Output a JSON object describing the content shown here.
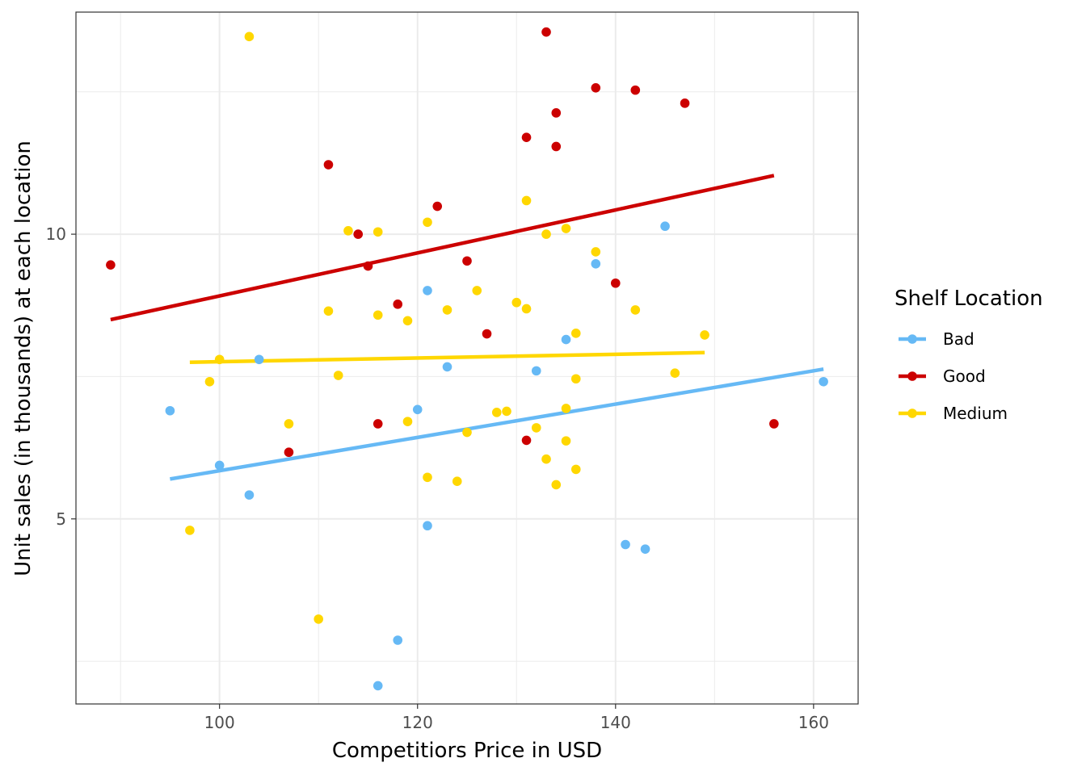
{
  "chart_data": {
    "type": "scatter",
    "xlabel": "Competitiors Price in USD",
    "ylabel": "Unit sales (in thousands) at each location",
    "xlim": [
      85.5,
      164.5
    ],
    "ylim": [
      1.75,
      13.9
    ],
    "x_ticks": [
      100,
      120,
      140,
      160
    ],
    "y_ticks": [
      5,
      10
    ],
    "grid": true,
    "legend": {
      "title": "Shelf Location",
      "position": "right"
    },
    "series": [
      {
        "name": "Bad",
        "color": "#66b9f5",
        "points": [
          [
            95,
            6.9
          ],
          [
            100,
            5.94
          ],
          [
            103,
            5.42
          ],
          [
            104,
            7.8
          ],
          [
            116,
            2.07
          ],
          [
            118,
            2.87
          ],
          [
            120,
            6.92
          ],
          [
            121,
            9.01
          ],
          [
            121,
            4.88
          ],
          [
            123,
            7.67
          ],
          [
            132,
            7.6
          ],
          [
            135,
            8.15
          ],
          [
            138,
            9.48
          ],
          [
            141,
            4.55
          ],
          [
            143,
            4.47
          ],
          [
            145,
            10.14
          ],
          [
            161,
            7.41
          ]
        ],
        "fit": [
          [
            95,
            5.7
          ],
          [
            161,
            7.63
          ]
        ]
      },
      {
        "name": "Good",
        "color": "#cc0000",
        "points": [
          [
            89,
            9.46
          ],
          [
            107,
            6.17
          ],
          [
            111,
            11.22
          ],
          [
            114,
            10.0
          ],
          [
            115,
            9.44
          ],
          [
            116,
            6.67
          ],
          [
            118,
            8.77
          ],
          [
            122,
            10.49
          ],
          [
            125,
            9.53
          ],
          [
            127,
            8.25
          ],
          [
            131,
            11.7
          ],
          [
            131,
            6.38
          ],
          [
            133,
            13.55
          ],
          [
            134,
            12.13
          ],
          [
            134,
            11.54
          ],
          [
            138,
            12.57
          ],
          [
            140,
            9.14
          ],
          [
            142,
            12.53
          ],
          [
            147,
            12.3
          ],
          [
            156,
            6.67
          ]
        ],
        "fit": [
          [
            89,
            8.5
          ],
          [
            156,
            11.03
          ]
        ]
      },
      {
        "name": "Medium",
        "color": "#ffd700",
        "points": [
          [
            97,
            4.8
          ],
          [
            99,
            7.41
          ],
          [
            100,
            7.8
          ],
          [
            103,
            13.47
          ],
          [
            107,
            6.67
          ],
          [
            110,
            3.24
          ],
          [
            111,
            8.65
          ],
          [
            112,
            7.52
          ],
          [
            113,
            10.06
          ],
          [
            116,
            10.04
          ],
          [
            116,
            8.58
          ],
          [
            119,
            8.48
          ],
          [
            119,
            6.71
          ],
          [
            121,
            10.21
          ],
          [
            121,
            5.73
          ],
          [
            123,
            8.67
          ],
          [
            124,
            5.66
          ],
          [
            125,
            6.52
          ],
          [
            126,
            9.01
          ],
          [
            128,
            6.87
          ],
          [
            129,
            6.89
          ],
          [
            130,
            8.8
          ],
          [
            131,
            10.59
          ],
          [
            131,
            8.69
          ],
          [
            132,
            6.6
          ],
          [
            133,
            10.0
          ],
          [
            133,
            6.05
          ],
          [
            134,
            5.6
          ],
          [
            135,
            10.1
          ],
          [
            135,
            6.94
          ],
          [
            135,
            6.37
          ],
          [
            136,
            8.26
          ],
          [
            136,
            7.46
          ],
          [
            136,
            5.87
          ],
          [
            138,
            9.69
          ],
          [
            142,
            8.67
          ],
          [
            146,
            7.56
          ],
          [
            149,
            8.23
          ]
        ],
        "fit": [
          [
            97,
            7.75
          ],
          [
            149,
            7.92
          ]
        ]
      }
    ]
  }
}
